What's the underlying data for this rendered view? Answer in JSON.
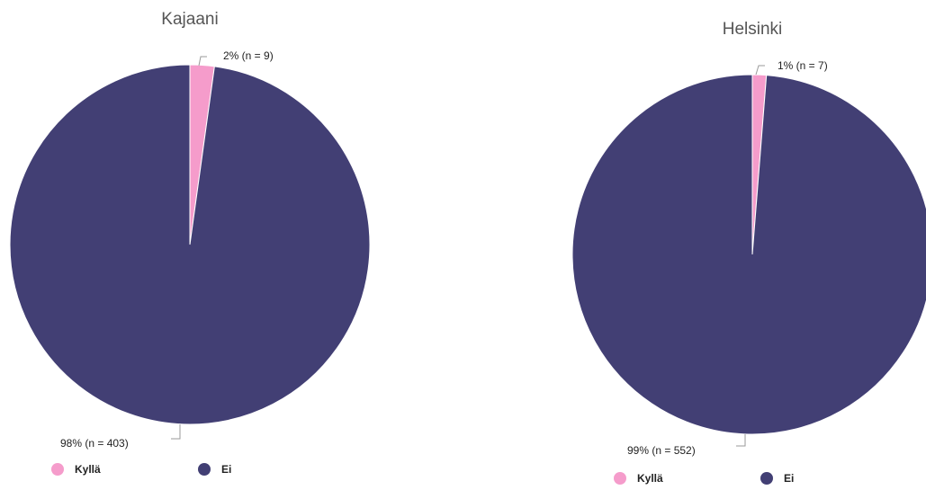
{
  "chart_data": [
    {
      "type": "pie",
      "title": "Kajaani",
      "slices": [
        {
          "name": "Kyllä",
          "percent": 2,
          "n": 9,
          "label": "2% (n = 9)",
          "color": "#f59ccb"
        },
        {
          "name": "Ei",
          "percent": 98,
          "n": 403,
          "label": "98% (n = 403)",
          "color": "#423f74"
        }
      ],
      "legend": "bottom-left"
    },
    {
      "type": "pie",
      "title": "Helsinki",
      "slices": [
        {
          "name": "Kyllä",
          "percent": 1,
          "n": 7,
          "label": "1% (n = 7)",
          "color": "#f59ccb"
        },
        {
          "name": "Ei",
          "percent": 99,
          "n": 552,
          "label": "99% (n = 552)",
          "color": "#423f74"
        }
      ],
      "legend": "bottom-left"
    }
  ]
}
